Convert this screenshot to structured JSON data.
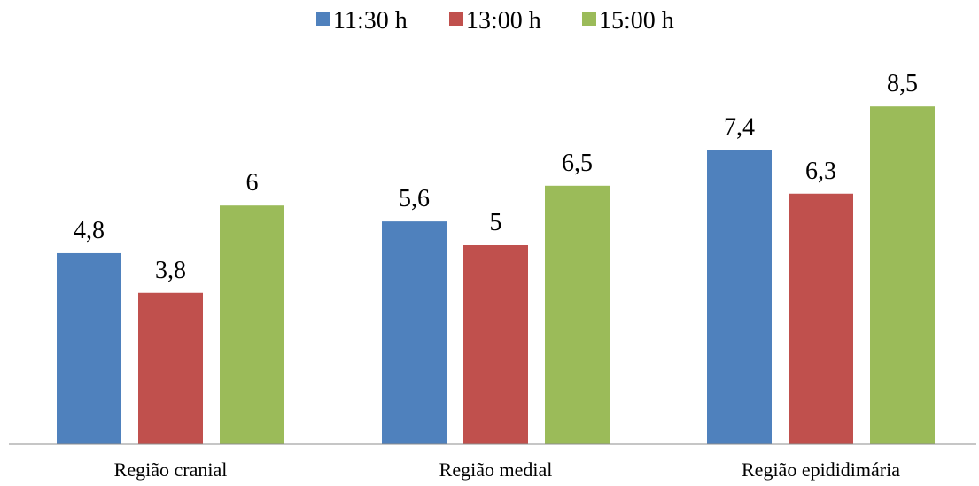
{
  "chart_data": {
    "type": "bar",
    "categories": [
      "Região cranial",
      "Região medial",
      "Região epididimária"
    ],
    "series": [
      {
        "name": "11:30 h",
        "values": [
          4.8,
          5.6,
          7.4
        ],
        "labels": [
          "4,8",
          "5,6",
          "7,4"
        ],
        "color": "#4F81BD"
      },
      {
        "name": "13:00 h",
        "values": [
          3.8,
          5.0,
          6.3
        ],
        "labels": [
          "3,8",
          "5",
          "6,3"
        ],
        "color": "#C0504D"
      },
      {
        "name": "15:00 h",
        "values": [
          6.0,
          6.5,
          8.5
        ],
        "labels": [
          "6",
          "6,5",
          "8,5"
        ],
        "color": "#9BBB59"
      }
    ],
    "title": "",
    "xlabel": "",
    "ylabel": "",
    "ylim": [
      0,
      9
    ],
    "grid": false,
    "legend_position": "top-center",
    "axis_color": "#8C8C8C"
  }
}
